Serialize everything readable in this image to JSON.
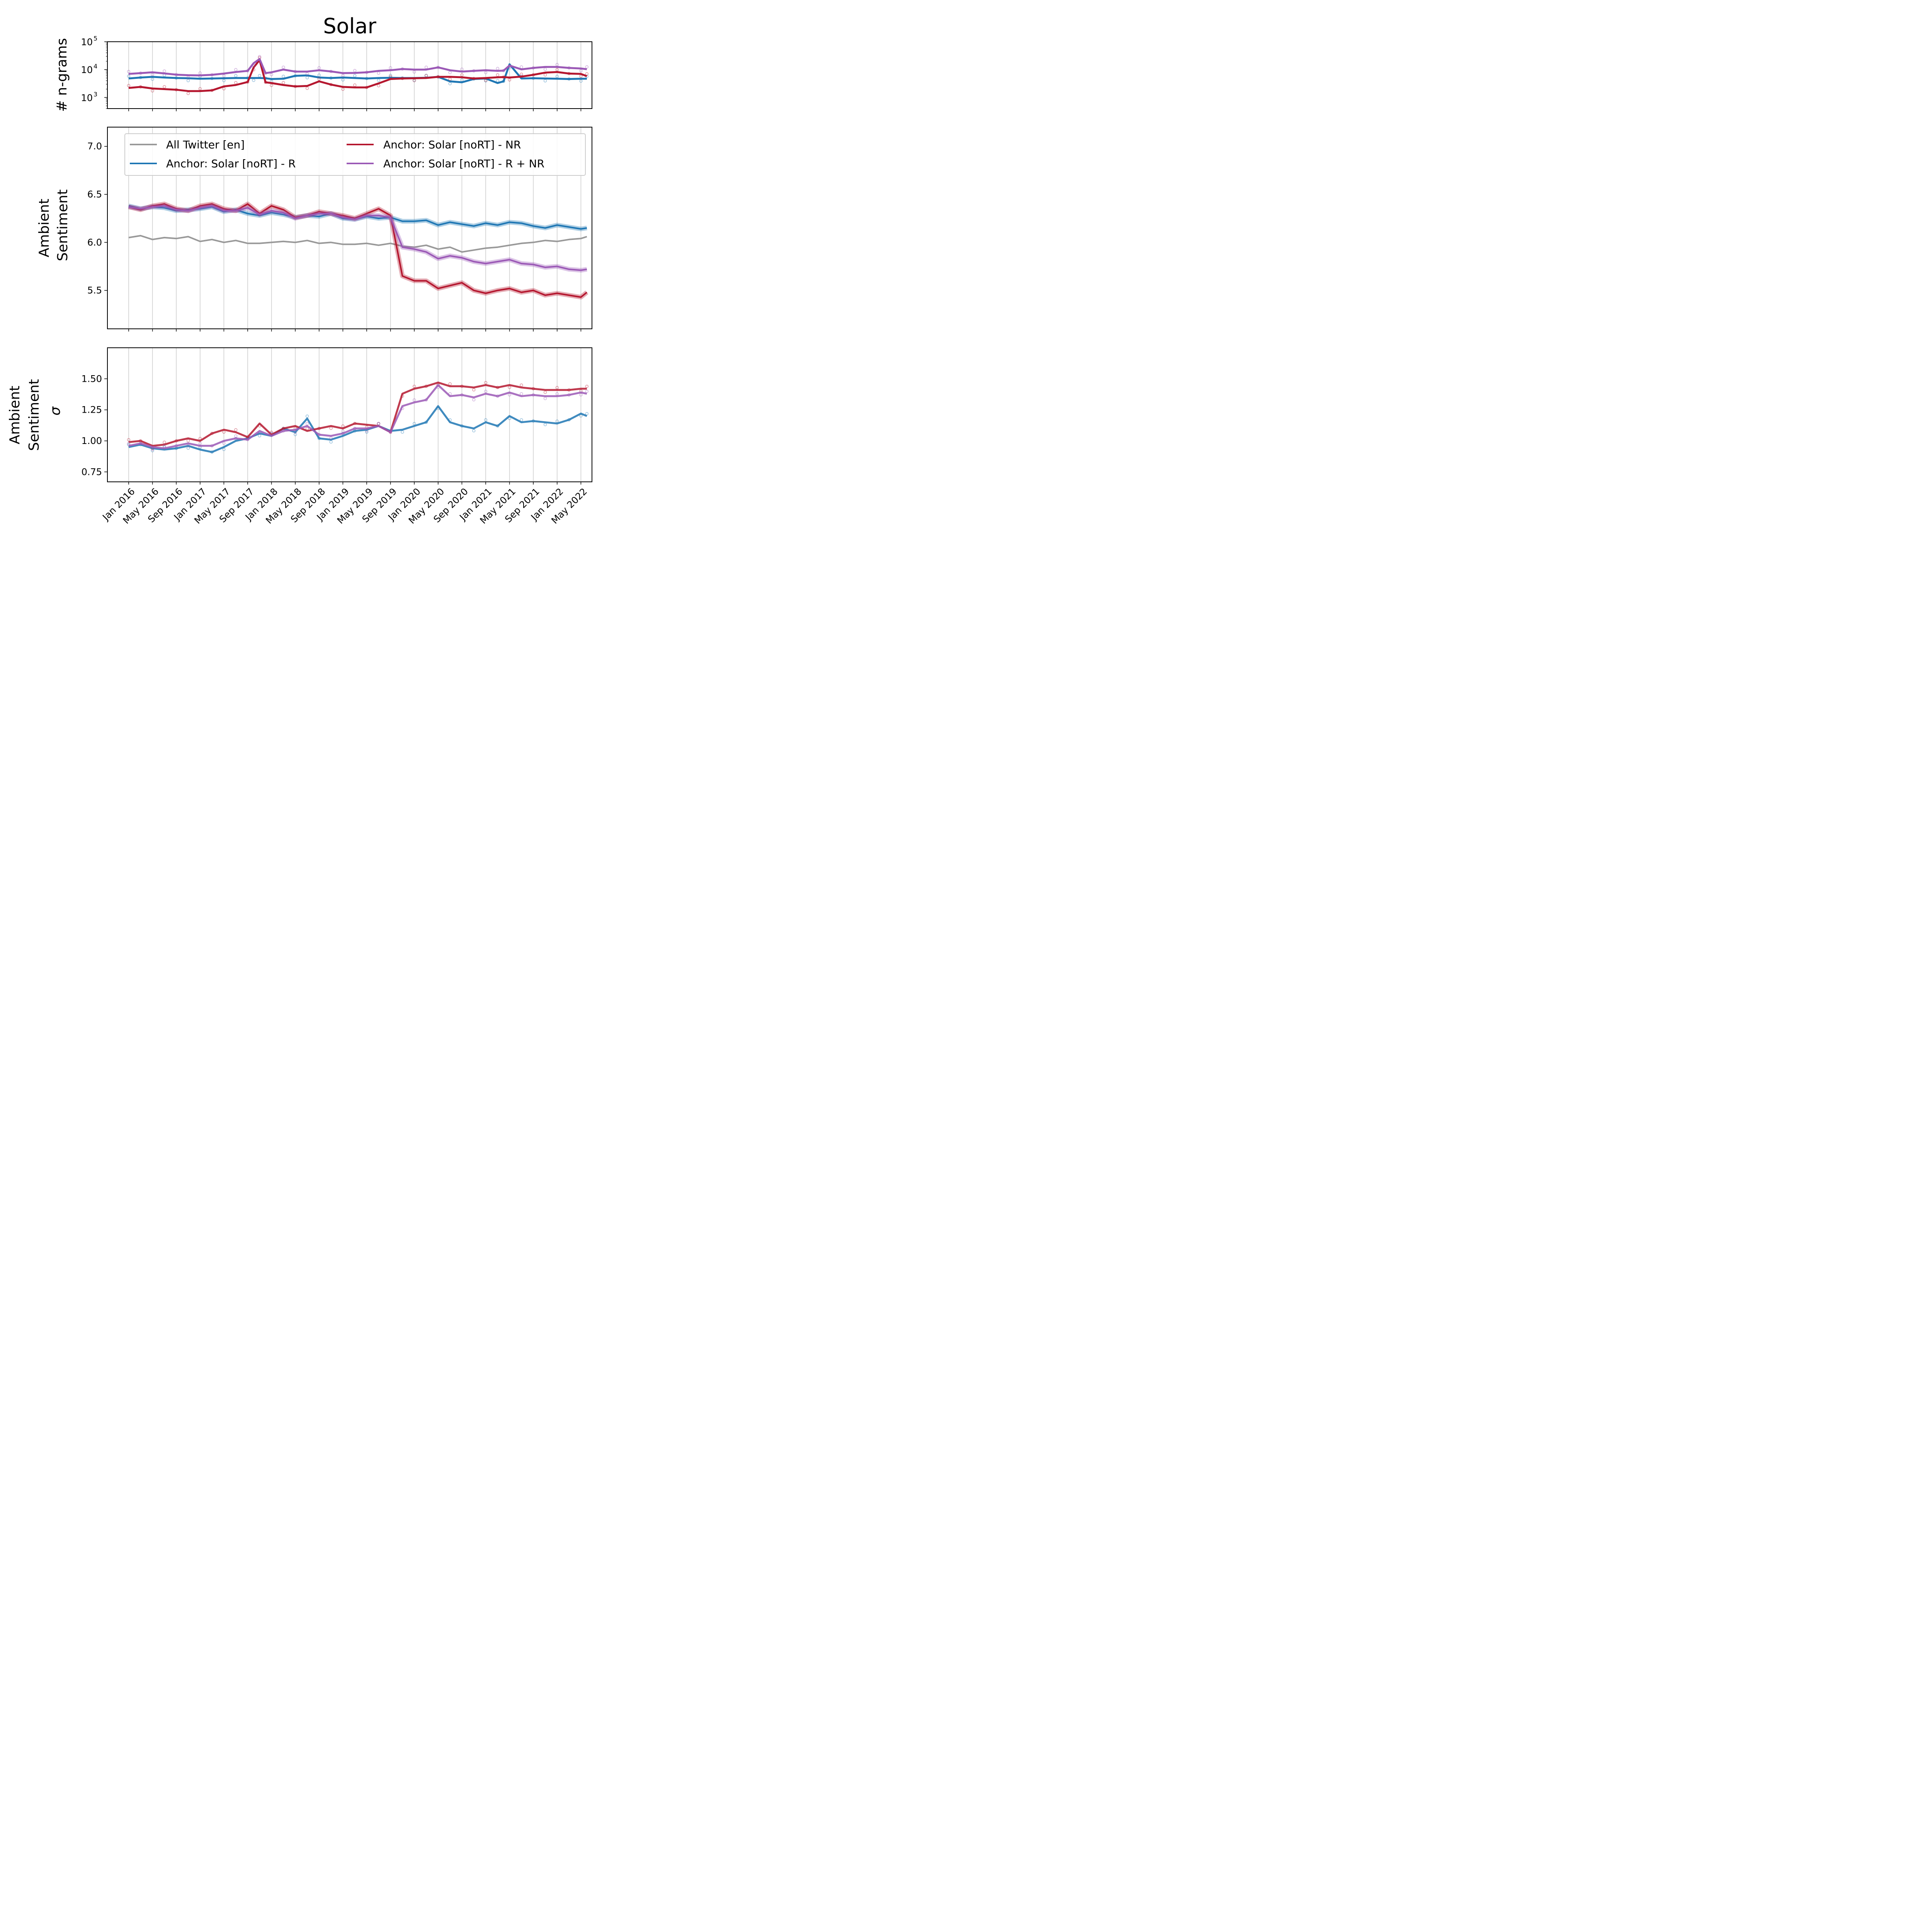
{
  "figure": {
    "title": "Solar"
  },
  "colors": {
    "all_twitter": "#999999",
    "r": "#1f77b4",
    "nr": "#b5172f",
    "r_nr": "#9b59b6",
    "grid": "#cccccc"
  },
  "legend": {
    "entries": [
      {
        "label": "All Twitter [en]",
        "color_key": "all_twitter"
      },
      {
        "label": "Anchor: Solar [noRT]  - NR",
        "color_key": "nr"
      },
      {
        "label": "Anchor: Solar [noRT] - R",
        "color_key": "r"
      },
      {
        "label": "Anchor: Solar [noRT]  - R + NR",
        "color_key": "r_nr"
      }
    ]
  },
  "x_axis": {
    "tick_labels": [
      "Jan 2016",
      "May 2016",
      "Sep 2016",
      "Jan 2017",
      "May 2017",
      "Sep 2017",
      "Jan 2018",
      "May 2018",
      "Sep 2018",
      "Jan 2019",
      "May 2019",
      "Sep 2019",
      "Jan 2020",
      "May 2020",
      "Sep 2020",
      "Jan 2021",
      "May 2021",
      "Sep 2021",
      "Jan 2022",
      "May 2022"
    ]
  },
  "chart_data": [
    {
      "type": "line",
      "panel": "ngrams",
      "ylabel": "# n-grams",
      "yscale": "log",
      "ylim": [
        400,
        100000
      ],
      "y_tick_labels": [
        {
          "base": "10",
          "exp": "3",
          "value": 1000
        },
        {
          "base": "10",
          "exp": "4",
          "value": 10000
        },
        {
          "base": "10",
          "exp": "5",
          "value": 100000
        }
      ],
      "x": [
        "2016-01",
        "2016-03",
        "2016-05",
        "2016-07",
        "2016-09",
        "2016-11",
        "2017-01",
        "2017-03",
        "2017-05",
        "2017-07",
        "2017-09",
        "2017-10",
        "2017-11",
        "2017-12",
        "2018-01",
        "2018-03",
        "2018-05",
        "2018-07",
        "2018-09",
        "2018-11",
        "2019-01",
        "2019-03",
        "2019-05",
        "2019-07",
        "2019-09",
        "2019-11",
        "2020-01",
        "2020-03",
        "2020-05",
        "2020-07",
        "2020-09",
        "2020-11",
        "2021-01",
        "2021-03",
        "2021-04",
        "2021-05",
        "2021-07",
        "2021-09",
        "2021-11",
        "2022-01",
        "2022-03",
        "2022-05",
        "2022-06"
      ],
      "series": [
        {
          "key": "r",
          "values": [
            4800,
            5200,
            5500,
            5200,
            5000,
            4900,
            4700,
            4800,
            4900,
            5000,
            5000,
            5000,
            5000,
            4900,
            4600,
            4700,
            6000,
            6200,
            5200,
            5000,
            5200,
            5000,
            4800,
            5000,
            5100,
            5000,
            5000,
            5100,
            5500,
            3800,
            3500,
            4600,
            4800,
            3300,
            3800,
            15500,
            4800,
            4900,
            4800,
            4700,
            4600,
            4700,
            4700
          ]
        },
        {
          "key": "nr",
          "values": [
            2200,
            2400,
            2100,
            2000,
            1900,
            1700,
            1700,
            1800,
            2500,
            2800,
            3600,
            12000,
            22000,
            3500,
            3300,
            2800,
            2500,
            2600,
            3800,
            2900,
            2400,
            2300,
            2300,
            3200,
            4600,
            4800,
            4900,
            5000,
            5500,
            5500,
            5300,
            4800,
            5000,
            5300,
            5400,
            5200,
            5600,
            6500,
            7800,
            8200,
            7200,
            7000,
            5800
          ]
        },
        {
          "key": "r_nr",
          "values": [
            7000,
            7500,
            8000,
            7300,
            6600,
            6300,
            6200,
            6500,
            7200,
            8200,
            9000,
            17000,
            24000,
            7500,
            8000,
            10000,
            8500,
            8500,
            9500,
            8600,
            7500,
            7600,
            8000,
            9000,
            9500,
            10500,
            10000,
            10000,
            12000,
            9500,
            8500,
            9000,
            9500,
            9000,
            9200,
            14000,
            10200,
            11500,
            12500,
            12500,
            11500,
            11000,
            10300
          ]
        }
      ]
    },
    {
      "type": "line",
      "panel": "ambient",
      "ylabel_lines": [
        "Ambient",
        "Sentiment"
      ],
      "ylim": [
        5.1,
        7.2
      ],
      "y_tick_labels": [
        "5.5",
        "6.0",
        "6.5",
        "7.0"
      ],
      "x": [
        "2016-01",
        "2016-03",
        "2016-05",
        "2016-07",
        "2016-09",
        "2016-11",
        "2017-01",
        "2017-03",
        "2017-05",
        "2017-07",
        "2017-09",
        "2017-11",
        "2018-01",
        "2018-03",
        "2018-05",
        "2018-07",
        "2018-09",
        "2018-11",
        "2019-01",
        "2019-03",
        "2019-05",
        "2019-07",
        "2019-09",
        "2019-11",
        "2020-01",
        "2020-03",
        "2020-05",
        "2020-07",
        "2020-09",
        "2020-11",
        "2021-01",
        "2021-03",
        "2021-05",
        "2021-07",
        "2021-09",
        "2021-11",
        "2022-01",
        "2022-03",
        "2022-05",
        "2022-06"
      ],
      "series": [
        {
          "key": "all_twitter",
          "values": [
            6.05,
            6.07,
            6.03,
            6.05,
            6.04,
            6.06,
            6.01,
            6.03,
            6.0,
            6.02,
            5.99,
            5.99,
            6.0,
            6.01,
            6.0,
            6.02,
            5.99,
            6.0,
            5.98,
            5.98,
            5.99,
            5.97,
            5.99,
            5.96,
            5.95,
            5.97,
            5.93,
            5.95,
            5.9,
            5.92,
            5.94,
            5.95,
            5.97,
            5.99,
            6.0,
            6.02,
            6.01,
            6.03,
            6.04,
            6.06
          ]
        },
        {
          "key": "r",
          "values": [
            6.38,
            6.35,
            6.37,
            6.36,
            6.33,
            6.34,
            6.35,
            6.37,
            6.32,
            6.34,
            6.3,
            6.28,
            6.31,
            6.29,
            6.26,
            6.28,
            6.27,
            6.3,
            6.25,
            6.24,
            6.27,
            6.25,
            6.26,
            6.22,
            6.22,
            6.23,
            6.18,
            6.21,
            6.19,
            6.17,
            6.2,
            6.18,
            6.21,
            6.2,
            6.17,
            6.15,
            6.18,
            6.16,
            6.14,
            6.15
          ]
        },
        {
          "key": "nr",
          "values": [
            6.37,
            6.34,
            6.38,
            6.4,
            6.35,
            6.33,
            6.38,
            6.4,
            6.35,
            6.33,
            6.4,
            6.3,
            6.38,
            6.34,
            6.26,
            6.28,
            6.32,
            6.3,
            6.28,
            6.25,
            6.3,
            6.35,
            6.28,
            5.65,
            5.6,
            5.6,
            5.52,
            5.55,
            5.58,
            5.5,
            5.47,
            5.5,
            5.52,
            5.48,
            5.5,
            5.45,
            5.47,
            5.45,
            5.43,
            5.48
          ]
        },
        {
          "key": "r_nr",
          "values": [
            6.37,
            6.35,
            6.37,
            6.38,
            6.34,
            6.33,
            6.36,
            6.38,
            6.33,
            6.33,
            6.36,
            6.29,
            6.33,
            6.31,
            6.25,
            6.28,
            6.3,
            6.3,
            6.26,
            6.24,
            6.28,
            6.28,
            6.26,
            5.95,
            5.93,
            5.9,
            5.83,
            5.86,
            5.84,
            5.8,
            5.78,
            5.8,
            5.82,
            5.78,
            5.77,
            5.74,
            5.75,
            5.72,
            5.71,
            5.72
          ]
        }
      ]
    },
    {
      "type": "line",
      "panel": "sigma",
      "ylabel_lines": [
        "Ambient",
        "Sentiment",
        "σ"
      ],
      "ylim": [
        0.67,
        1.75
      ],
      "y_tick_labels": [
        "0.75",
        "1.00",
        "1.25",
        "1.50"
      ],
      "x": [
        "2016-01",
        "2016-03",
        "2016-05",
        "2016-07",
        "2016-09",
        "2016-11",
        "2017-01",
        "2017-03",
        "2017-05",
        "2017-07",
        "2017-09",
        "2017-11",
        "2018-01",
        "2018-03",
        "2018-05",
        "2018-07",
        "2018-09",
        "2018-11",
        "2019-01",
        "2019-03",
        "2019-05",
        "2019-07",
        "2019-09",
        "2019-11",
        "2020-01",
        "2020-03",
        "2020-05",
        "2020-07",
        "2020-09",
        "2020-11",
        "2021-01",
        "2021-03",
        "2021-05",
        "2021-07",
        "2021-09",
        "2021-11",
        "2022-01",
        "2022-03",
        "2022-05",
        "2022-06"
      ],
      "series": [
        {
          "key": "r",
          "values": [
            0.95,
            0.97,
            0.94,
            0.93,
            0.94,
            0.96,
            0.93,
            0.91,
            0.95,
            1.0,
            1.02,
            1.06,
            1.04,
            1.1,
            1.07,
            1.18,
            1.02,
            1.01,
            1.04,
            1.08,
            1.09,
            1.12,
            1.08,
            1.09,
            1.12,
            1.15,
            1.28,
            1.15,
            1.12,
            1.1,
            1.15,
            1.12,
            1.2,
            1.15,
            1.16,
            1.15,
            1.14,
            1.17,
            1.22,
            1.2
          ]
        },
        {
          "key": "nr",
          "values": [
            0.99,
            1.0,
            0.96,
            0.97,
            1.0,
            1.02,
            1.0,
            1.06,
            1.09,
            1.07,
            1.03,
            1.14,
            1.05,
            1.1,
            1.12,
            1.08,
            1.1,
            1.12,
            1.1,
            1.14,
            1.13,
            1.12,
            1.07,
            1.38,
            1.42,
            1.44,
            1.47,
            1.44,
            1.44,
            1.43,
            1.45,
            1.43,
            1.45,
            1.43,
            1.42,
            1.41,
            1.41,
            1.41,
            1.42,
            1.42
          ]
        },
        {
          "key": "r_nr",
          "values": [
            0.96,
            0.98,
            0.95,
            0.94,
            0.96,
            0.98,
            0.96,
            0.96,
            1.0,
            1.02,
            1.01,
            1.08,
            1.04,
            1.08,
            1.09,
            1.12,
            1.05,
            1.04,
            1.06,
            1.1,
            1.1,
            1.12,
            1.07,
            1.28,
            1.31,
            1.33,
            1.45,
            1.36,
            1.37,
            1.35,
            1.38,
            1.36,
            1.39,
            1.36,
            1.37,
            1.36,
            1.36,
            1.37,
            1.39,
            1.38
          ]
        }
      ]
    }
  ]
}
